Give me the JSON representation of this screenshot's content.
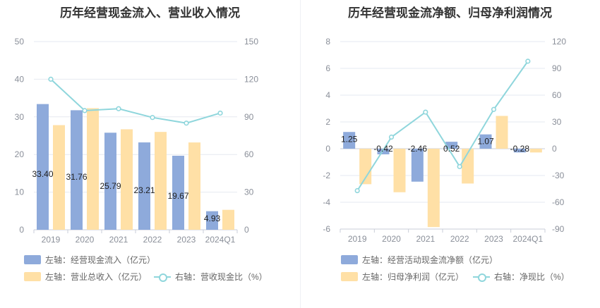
{
  "colors": {
    "bar_primary": "#8eaadb",
    "bar_secondary": "#ffe0a6",
    "line": "#8fd6dc",
    "grid": "#e6e9f0"
  },
  "left": {
    "title": "历年经营现金流入、营业收入情况",
    "legend": {
      "item1": "左轴：经营现金流入（亿元）",
      "item2": "左轴：营业总收入（亿元）",
      "item3": "右轴：营收现金比（%）"
    }
  },
  "right": {
    "title": "历年经营现金流净额、归母净利润情况",
    "legend": {
      "item1": "左轴：经营活动现金流净额（亿元）",
      "item2": "左轴：归母净利润（亿元）",
      "item3": "右轴：净现比（%）"
    }
  },
  "chart_data": [
    {
      "type": "bar",
      "title": "历年经营现金流入、营业收入情况",
      "categories": [
        "2019",
        "2020",
        "2021",
        "2022",
        "2023",
        "2024Q1"
      ],
      "series": [
        {
          "name": "经营现金流入（亿元）",
          "axis": "left",
          "values": [
            33.4,
            31.76,
            25.79,
            23.21,
            19.67,
            4.93
          ],
          "labels": [
            "33.40",
            "31.76",
            "25.79",
            "23.21",
            "19.67",
            "4.93"
          ]
        },
        {
          "name": "营业总收入（亿元）",
          "axis": "left",
          "values": [
            27.8,
            32.3,
            26.7,
            26.0,
            23.2,
            5.3
          ]
        },
        {
          "name": "营收现金比（%）",
          "axis": "right",
          "type": "line",
          "values": [
            120,
            95,
            96.5,
            89.5,
            85,
            93
          ]
        }
      ],
      "ylim_left": [
        0,
        50
      ],
      "yticks_left": [
        "0",
        "10",
        "20",
        "30",
        "40",
        "50"
      ],
      "ylim_right": [
        0,
        150
      ],
      "yticks_right": [
        "0",
        "30",
        "60",
        "90",
        "120",
        "150"
      ]
    },
    {
      "type": "bar",
      "title": "历年经营现金流净额、归母净利润情况",
      "categories": [
        "2019",
        "2020",
        "2021",
        "2022",
        "2023",
        "2024Q1"
      ],
      "series": [
        {
          "name": "经营活动现金流净额（亿元）",
          "axis": "left",
          "values": [
            1.25,
            -0.42,
            -2.46,
            0.52,
            1.07,
            -0.28
          ],
          "labels": [
            "1.25",
            "-0.42",
            "-2.46",
            "0.52",
            "1.07",
            "-0.28"
          ]
        },
        {
          "name": "归母净利润（亿元）",
          "axis": "left",
          "values": [
            -2.65,
            -3.25,
            -5.85,
            -2.6,
            2.45,
            -0.28
          ]
        },
        {
          "name": "净现比（%）",
          "axis": "right",
          "type": "line",
          "values": [
            -47,
            13,
            41,
            -20,
            44,
            98
          ]
        }
      ],
      "ylim_left": [
        -6,
        8
      ],
      "yticks_left": [
        "-6",
        "-4",
        "-2",
        "0",
        "2",
        "4",
        "6",
        "8"
      ],
      "ylim_right": [
        -90,
        120
      ],
      "yticks_right": [
        "-90",
        "-60",
        "-30",
        "0",
        "30",
        "60",
        "90",
        "120"
      ]
    }
  ]
}
